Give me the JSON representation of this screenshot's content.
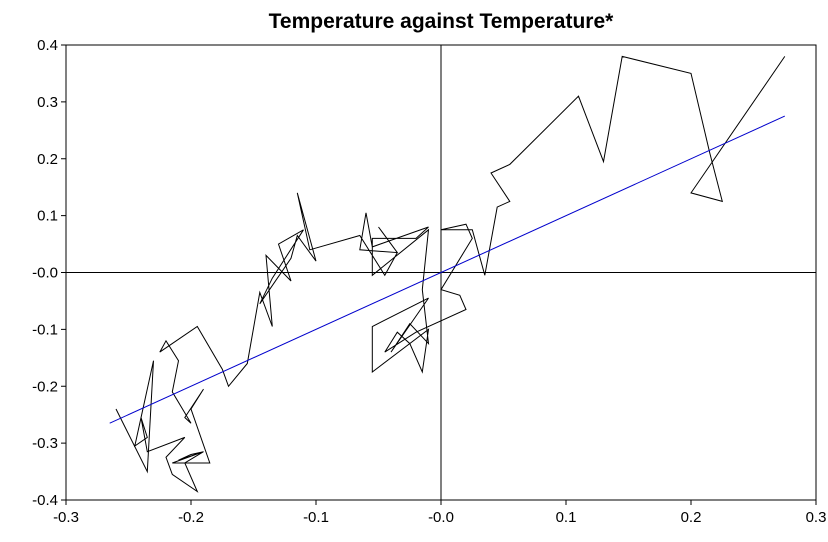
{
  "chart_data": {
    "type": "line",
    "title": "Temperature against Temperature*",
    "xlabel": "",
    "ylabel": "",
    "xlim": [
      -0.3,
      0.3
    ],
    "ylim": [
      -0.4,
      0.4
    ],
    "xticks": [
      "-0.3",
      "-0.2",
      "-0.1",
      "-0.0",
      "0.1",
      "0.2",
      "0.3"
    ],
    "yticks": [
      "0.4",
      "0.3",
      "0.2",
      "0.1",
      "-0.0",
      "-0.1",
      "-0.2",
      "-0.3",
      "-0.4"
    ],
    "zero_lines": true,
    "grid": false,
    "series": [
      {
        "color": "#000000",
        "style": "connected",
        "points": [
          [
            -0.26,
            -0.24
          ],
          [
            -0.235,
            -0.35
          ],
          [
            -0.23,
            -0.155
          ],
          [
            -0.245,
            -0.305
          ],
          [
            -0.235,
            -0.29
          ],
          [
            -0.24,
            -0.255
          ],
          [
            -0.235,
            -0.315
          ],
          [
            -0.205,
            -0.29
          ],
          [
            -0.22,
            -0.325
          ],
          [
            -0.215,
            -0.355
          ],
          [
            -0.195,
            -0.385
          ],
          [
            -0.205,
            -0.335
          ],
          [
            -0.19,
            -0.315
          ],
          [
            -0.21,
            -0.33
          ],
          [
            -0.2,
            -0.32
          ],
          [
            -0.19,
            -0.315
          ],
          [
            -0.215,
            -0.335
          ],
          [
            -0.185,
            -0.335
          ],
          [
            -0.2,
            -0.24
          ],
          [
            -0.19,
            -0.205
          ],
          [
            -0.205,
            -0.255
          ],
          [
            -0.2,
            -0.265
          ],
          [
            -0.215,
            -0.21
          ],
          [
            -0.21,
            -0.155
          ],
          [
            -0.22,
            -0.12
          ],
          [
            -0.225,
            -0.14
          ],
          [
            -0.195,
            -0.095
          ],
          [
            -0.175,
            -0.17
          ],
          [
            -0.17,
            -0.2
          ],
          [
            -0.155,
            -0.16
          ],
          [
            -0.145,
            -0.035
          ],
          [
            -0.135,
            -0.095
          ],
          [
            -0.14,
            0.03
          ],
          [
            -0.12,
            -0.015
          ],
          [
            -0.13,
            0.05
          ],
          [
            -0.11,
            0.075
          ],
          [
            -0.135,
            -0.01
          ],
          [
            -0.145,
            -0.055
          ],
          [
            -0.12,
            0.025
          ],
          [
            -0.115,
            0.065
          ],
          [
            -0.1,
            0.02
          ],
          [
            -0.115,
            0.14
          ],
          [
            -0.105,
            0.04
          ],
          [
            -0.065,
            0.065
          ],
          [
            -0.045,
            -0.005
          ],
          [
            -0.035,
            0.035
          ],
          [
            -0.05,
            0.08
          ],
          [
            -0.035,
            0.035
          ],
          [
            -0.065,
            0.04
          ],
          [
            -0.06,
            0.105
          ],
          [
            -0.055,
            0.045
          ],
          [
            -0.01,
            0.08
          ],
          [
            -0.02,
            0.06
          ],
          [
            -0.055,
            0.06
          ],
          [
            -0.055,
            -0.005
          ],
          [
            -0.01,
            0.075
          ],
          [
            -0.015,
            -0.03
          ],
          [
            -0.01,
            -0.125
          ],
          [
            -0.025,
            -0.09
          ],
          [
            -0.04,
            -0.14
          ],
          [
            -0.01,
            -0.045
          ],
          [
            -0.055,
            -0.095
          ],
          [
            -0.055,
            -0.175
          ],
          [
            -0.01,
            -0.1
          ],
          [
            -0.015,
            -0.175
          ],
          [
            -0.025,
            -0.125
          ],
          [
            -0.035,
            -0.105
          ],
          [
            -0.045,
            -0.14
          ],
          [
            -0.02,
            -0.105
          ],
          [
            0.02,
            -0.065
          ],
          [
            0.015,
            -0.04
          ],
          [
            0.0,
            -0.03
          ],
          [
            0.025,
            0.06
          ],
          [
            0.02,
            0.085
          ],
          [
            0.0,
            0.075
          ],
          [
            0.025,
            0.075
          ],
          [
            0.035,
            -0.005
          ],
          [
            0.045,
            0.115
          ],
          [
            0.055,
            0.125
          ],
          [
            0.04,
            0.175
          ],
          [
            0.055,
            0.19
          ],
          [
            0.11,
            0.31
          ],
          [
            0.13,
            0.195
          ],
          [
            0.145,
            0.38
          ],
          [
            0.2,
            0.35
          ],
          [
            0.215,
            0.21
          ],
          [
            0.225,
            0.125
          ],
          [
            0.2,
            0.14
          ],
          [
            0.275,
            0.38
          ]
        ]
      },
      {
        "color": "#0000cc",
        "style": "line",
        "points": [
          [
            -0.265,
            -0.265
          ],
          [
            0.275,
            0.275
          ]
        ]
      }
    ]
  }
}
